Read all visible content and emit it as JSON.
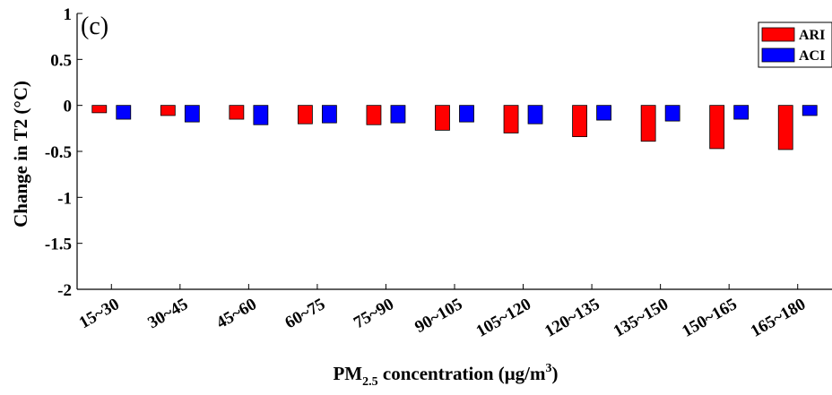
{
  "chart_data": {
    "type": "bar",
    "panel_label": "(c)",
    "ylabel": "Change in T2 (°C)",
    "xlabel": {
      "prefix": "PM",
      "subscript": "2.5",
      "middle": " concentration (μg/m",
      "superscript": "3",
      "suffix": ")"
    },
    "ylim": [
      -2,
      1
    ],
    "yticks": [
      1,
      0.5,
      0,
      -0.5,
      -1,
      -1.5,
      -2
    ],
    "ytick_labels": [
      "1",
      "0.5",
      "0",
      "-0.5",
      "-1",
      "-1.5",
      "-2"
    ],
    "categories": [
      "15~30",
      "30~45",
      "45~60",
      "60~75",
      "75~90",
      "90~105",
      "105~120",
      "120~135",
      "135~150",
      "150~165",
      "165~180"
    ],
    "series": [
      {
        "name": "ARI",
        "color": "#ff0000",
        "values": [
          -0.08,
          -0.11,
          -0.15,
          -0.2,
          -0.21,
          -0.27,
          -0.3,
          -0.34,
          -0.39,
          -0.47,
          -0.48
        ]
      },
      {
        "name": "ACI",
        "color": "#0000ff",
        "values": [
          -0.15,
          -0.18,
          -0.21,
          -0.19,
          -0.19,
          -0.18,
          -0.2,
          -0.16,
          -0.17,
          -0.15,
          -0.11
        ]
      }
    ],
    "legend": {
      "placement": "top-right"
    },
    "grid": false
  }
}
